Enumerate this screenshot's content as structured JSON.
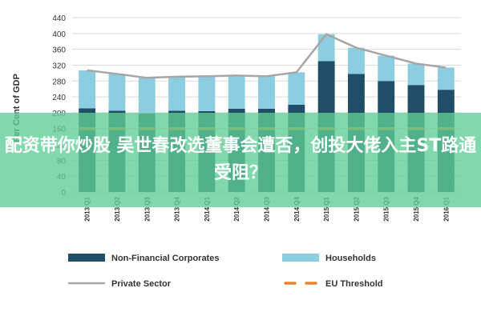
{
  "chart_data": {
    "type": "bar",
    "stacked": true,
    "title": "",
    "xlabel": "",
    "ylabel": "Per Cent of GDP",
    "ylim": [
      0,
      440
    ],
    "yticks": [
      0,
      40,
      80,
      120,
      160,
      200,
      240,
      280,
      320,
      360,
      400,
      440
    ],
    "grid": true,
    "legend_position": "bottom",
    "categories": [
      "2013 Q1",
      "2013 Q2",
      "2013 Q3",
      "2013 Q4",
      "2014 Q1",
      "2014 Q2",
      "2014 Q3",
      "2014 Q4",
      "2015 Q1",
      "2015 Q2",
      "2015 Q3",
      "2015 Q4",
      "2016 Q1"
    ],
    "series": [
      {
        "name": "Non-Financial Corporates",
        "kind": "bar",
        "color": "#1f4e66",
        "values": [
          211,
          205,
          198,
          205,
          204,
          210,
          210,
          220,
          330,
          298,
          280,
          270,
          258
        ]
      },
      {
        "name": "Households",
        "kind": "bar",
        "color": "#8ccde0",
        "values": [
          96,
          93,
          90,
          86,
          88,
          84,
          82,
          82,
          68,
          66,
          64,
          54,
          56
        ]
      },
      {
        "name": "Private Sector",
        "kind": "line",
        "color": "#a6a6a6",
        "values": [
          307,
          298,
          288,
          291,
          292,
          294,
          292,
          302,
          398,
          364,
          344,
          324,
          314
        ]
      },
      {
        "name": "EU Threshold",
        "kind": "dash",
        "color": "#e8832a",
        "values": [
          160,
          160,
          160,
          160,
          160,
          160,
          160,
          160,
          160,
          160,
          160,
          160,
          160
        ]
      }
    ]
  },
  "banner": {
    "text": "配资带你炒股 吴世春改选董事会遭否，创投大佬入主ST路通受阻？"
  }
}
